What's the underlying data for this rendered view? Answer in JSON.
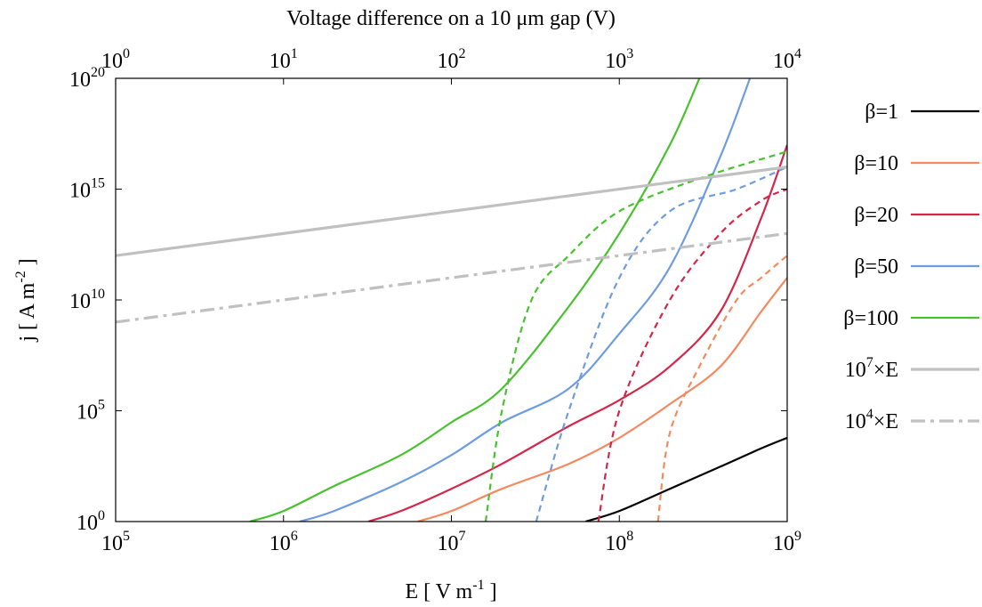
{
  "chart_data": {
    "type": "line",
    "title": "",
    "xlabel": "E [ V m",
    "xlabel_exp": "-1",
    "xlabel_end": " ]",
    "ylabel": "j [ A m",
    "ylabel_exp": "-2",
    "ylabel_end": " ]",
    "top_xlabel": "Voltage difference on a 10 μm gap (V)",
    "xscale": "log",
    "yscale": "log",
    "xlim": [
      100000,
      1000000000
    ],
    "ylim": [
      1,
      1e+20
    ],
    "top_xlim": [
      1,
      10000
    ],
    "grid": false,
    "legend_position": "outside-right",
    "x_ticks": [
      {
        "base": "10",
        "exp": "5"
      },
      {
        "base": "10",
        "exp": "6"
      },
      {
        "base": "10",
        "exp": "7"
      },
      {
        "base": "10",
        "exp": "8"
      },
      {
        "base": "10",
        "exp": "9"
      }
    ],
    "y_ticks": [
      {
        "base": "10",
        "exp": "0"
      },
      {
        "base": "10",
        "exp": "5"
      },
      {
        "base": "10",
        "exp": "10"
      },
      {
        "base": "10",
        "exp": "15"
      },
      {
        "base": "10",
        "exp": "20"
      }
    ],
    "top_ticks": [
      {
        "base": "10",
        "exp": "0"
      },
      {
        "base": "10",
        "exp": "1"
      },
      {
        "base": "10",
        "exp": "2"
      },
      {
        "base": "10",
        "exp": "3"
      },
      {
        "base": "10",
        "exp": "4"
      }
    ],
    "series": [
      {
        "name": "β=1",
        "color": "#000000",
        "style": "solid",
        "x": [
          63000000.0,
          100000000.0,
          200000000.0,
          400000000.0,
          700000000.0,
          1000000000.0
        ],
        "y": [
          1,
          3,
          30,
          300,
          2000,
          6000
        ]
      },
      {
        "name": "β=10",
        "color": "#f4895f",
        "style": "solid",
        "x": [
          6300000.0,
          10000000.0,
          20000000.0,
          50000000.0,
          100000000.0,
          200000000.0,
          400000000.0,
          700000000.0,
          1000000000.0
        ],
        "y": [
          1,
          3,
          30,
          400,
          6000,
          200000.0,
          10000000.0,
          3000000000.0,
          100000000000.0
        ]
      },
      {
        "name": "β=20",
        "color": "#d42648",
        "style": "solid",
        "x": [
          3200000.0,
          5000000.0,
          10000000.0,
          20000000.0,
          50000000.0,
          100000000.0,
          200000000.0,
          400000000.0,
          700000000.0,
          1000000000.0
        ],
        "y": [
          1,
          3,
          30,
          400,
          20000.0,
          300000.0,
          10000000.0,
          3000000000.0,
          50000000000000.0,
          1e+17
        ]
      },
      {
        "name": "β=50",
        "color": "#6e9cde",
        "style": "solid",
        "x": [
          1250000.0,
          2000000.0,
          5000000.0,
          10000000.0,
          20000000.0,
          50000000.0,
          100000000.0,
          200000000.0,
          400000000.0,
          600000000.0
        ],
        "y": [
          1,
          3,
          60,
          1000,
          30000.0,
          1000000.0,
          300000000.0,
          300000000000.0,
          3e+16,
          1e+20
        ]
      },
      {
        "name": "β=100",
        "color": "#48c12e",
        "style": "solid",
        "x": [
          630000.0,
          1000000.0,
          2000000.0,
          5000000.0,
          10000000.0,
          20000000.0,
          50000000.0,
          100000000.0,
          200000000.0,
          300000000.0
        ],
        "y": [
          1,
          3,
          40,
          1000,
          30000.0,
          1000000.0,
          5000000000.0,
          10000000000000.0,
          1e+17,
          1e+20
        ]
      },
      {
        "name": "β=10",
        "color": "#f4895f",
        "style": "dashed",
        "x": [
          170000000.0,
          200000000.0,
          300000000.0,
          500000000.0,
          700000000.0,
          1000000000.0
        ],
        "y": [
          1,
          10000.0,
          10000000.0,
          10000000000.0,
          100000000000.0,
          1000000000000.0
        ]
      },
      {
        "name": "β=20",
        "color": "#d42648",
        "style": "dashed",
        "x": [
          75000000.0,
          100000000.0,
          200000000.0,
          400000000.0,
          700000000.0,
          1000000000.0
        ],
        "y": [
          1,
          100000.0,
          10000000000.0,
          10000000000000.0,
          300000000000000.0,
          1000000000000000.0
        ]
      },
      {
        "name": "β=50",
        "color": "#6e9cde",
        "style": "dashed",
        "x": [
          32000000.0,
          50000000.0,
          100000000.0,
          200000000.0,
          500000000.0,
          1000000000.0
        ],
        "y": [
          1,
          100000.0,
          100000000000.0,
          100000000000000.0,
          1000000000000000.0,
          1e+16
        ]
      },
      {
        "name": "β=100",
        "color": "#48c12e",
        "style": "dashed",
        "x": [
          16000000.0,
          20000000.0,
          30000000.0,
          50000000.0,
          100000000.0,
          300000000.0,
          1000000000.0
        ],
        "y": [
          1,
          100000.0,
          10000000000.0,
          1000000000000.0,
          100000000000000.0,
          3000000000000000.0,
          5e+16
        ]
      },
      {
        "name": "10⁷×E",
        "color": "#c0c0c0",
        "style": "solid-thick",
        "x": [
          100000.0,
          1000000000.0
        ],
        "y": [
          1000000000000.0,
          1e+16
        ]
      },
      {
        "name": "10⁴×E",
        "color": "#c0c0c0",
        "style": "dashdot-thick",
        "x": [
          100000.0,
          1000000000.0
        ],
        "y": [
          1000000000.0,
          10000000000000.0
        ]
      }
    ],
    "legend": [
      {
        "prefix": "β=1",
        "base": "",
        "exp": "",
        "suffix": "",
        "color": "#000000",
        "style": "solid"
      },
      {
        "prefix": "β=10",
        "base": "",
        "exp": "",
        "suffix": "",
        "color": "#f4895f",
        "style": "solid"
      },
      {
        "prefix": "β=20",
        "base": "",
        "exp": "",
        "suffix": "",
        "color": "#d42648",
        "style": "solid"
      },
      {
        "prefix": "β=50",
        "base": "",
        "exp": "",
        "suffix": "",
        "color": "#6e9cde",
        "style": "solid"
      },
      {
        "prefix": "β=100",
        "base": "",
        "exp": "",
        "suffix": "",
        "color": "#48c12e",
        "style": "solid"
      },
      {
        "prefix": "",
        "base": "10",
        "exp": "7",
        "suffix": "×E",
        "color": "#c0c0c0",
        "style": "solid-thick"
      },
      {
        "prefix": "",
        "base": "10",
        "exp": "4",
        "suffix": "×E",
        "color": "#c0c0c0",
        "style": "dashdot-thick"
      }
    ]
  }
}
